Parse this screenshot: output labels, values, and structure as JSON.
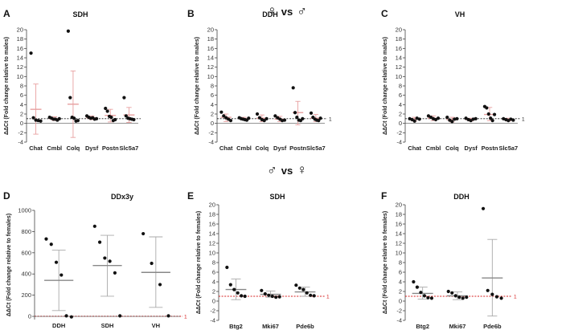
{
  "header_top": {
    "left_symbol": "♀",
    "vs": "vs",
    "right_symbol": "♂"
  },
  "header_bottom": {
    "left_symbol": "♂",
    "vs": "vs",
    "right_symbol": "♀"
  },
  "colors": {
    "point": "#111111",
    "sd_female_ref": "#e8a0a0",
    "sd_grey": "#aaaaaa",
    "reference_line": "#d62020",
    "zero_line": "#555555"
  },
  "chart_data": [
    {
      "panel": "A",
      "type": "scatter",
      "title": "SDH",
      "ylabel": "ΔΔCt (Fold change relative to males)",
      "ylim": [
        -4,
        20
      ],
      "yticks": [
        -4,
        -2,
        0,
        2,
        4,
        6,
        8,
        10,
        12,
        14,
        16,
        18,
        20
      ],
      "reference_line": 1,
      "reference_label": "",
      "reference_style": "dotted-black",
      "sd_color": "pink",
      "categories": [
        "Chat",
        "Cmbl",
        "Colq",
        "Dysf",
        "Postn",
        "Slc5a7"
      ],
      "points": [
        [
          15.0,
          1.2,
          0.7,
          0.6,
          0.5
        ],
        [
          1.3,
          1.1,
          0.9,
          0.9,
          0.7,
          1.0
        ],
        [
          19.7,
          5.5,
          1.3,
          1.1,
          0.5,
          0.6
        ],
        [
          1.6,
          1.3,
          1.1,
          1.2,
          0.9,
          1.0
        ],
        [
          3.2,
          2.6,
          1.5,
          1.3,
          0.6,
          0.8
        ],
        [
          5.5,
          1.6,
          1.1,
          1.0,
          0.9,
          0.8
        ]
      ],
      "means": [
        3.0,
        1.0,
        4.1,
        1.2,
        1.7,
        1.8
      ],
      "sd": [
        [
          -2.3,
          8.4
        ],
        [
          0.6,
          1.4
        ],
        [
          -3.0,
          11.2
        ],
        [
          0.8,
          1.6
        ],
        [
          0.3,
          3.0
        ],
        [
          0.2,
          3.4
        ]
      ]
    },
    {
      "panel": "B",
      "type": "scatter",
      "title": "DDH",
      "ylabel": "ΔΔCt (Fold change relative to males)",
      "ylim": [
        -4,
        20
      ],
      "yticks": [
        -4,
        -2,
        0,
        2,
        4,
        6,
        8,
        10,
        12,
        14,
        16,
        18,
        20
      ],
      "reference_line": 1,
      "reference_label": "1",
      "reference_style": "dotted-black",
      "sd_color": "pink",
      "categories": [
        "Chat",
        "Cmbl",
        "Colq",
        "Dysf",
        "Postn",
        "Slc5a7"
      ],
      "points": [
        [
          2.4,
          1.6,
          1.2,
          0.9,
          0.6
        ],
        [
          1.2,
          1.0,
          0.9,
          0.8,
          0.7,
          1.1
        ],
        [
          2.0,
          1.2,
          0.8,
          0.6,
          1.0
        ],
        [
          1.6,
          1.2,
          0.9,
          0.6,
          0.7
        ],
        [
          7.6,
          2.3,
          1.3,
          0.7,
          0.6,
          1.0
        ],
        [
          2.2,
          1.3,
          0.9,
          0.7,
          0.6,
          1.1
        ]
      ],
      "means": [
        1.3,
        1.0,
        1.1,
        0.9,
        2.3,
        1.1
      ],
      "sd": [
        [
          0.4,
          2.0
        ],
        [
          0.7,
          1.3
        ],
        [
          0.4,
          1.8
        ],
        [
          0.4,
          1.5
        ],
        [
          -0.3,
          4.7
        ],
        [
          0.4,
          1.9
        ]
      ]
    },
    {
      "panel": "C",
      "type": "scatter",
      "title": "VH",
      "ylabel": "ΔΔCt (Fold change relative to males)",
      "ylim": [
        -4,
        20
      ],
      "yticks": [
        -4,
        -2,
        0,
        2,
        4,
        6,
        8,
        10,
        12,
        14,
        16,
        18,
        20
      ],
      "reference_line": 1,
      "reference_label": "1",
      "reference_style": "dotted-black",
      "sd_color": "pink",
      "categories": [
        "Chat",
        "Cmbl",
        "Colq",
        "Dysf",
        "Postn",
        "Slc5a7"
      ],
      "points": [
        [
          1.0,
          0.8,
          0.5,
          1.1,
          0.9
        ],
        [
          1.6,
          1.3,
          1.0,
          0.8,
          1.1
        ],
        [
          1.3,
          0.7,
          0.4,
          0.9,
          1.0
        ],
        [
          1.1,
          0.8,
          0.6,
          0.9,
          1.0
        ],
        [
          3.6,
          3.3,
          2.0,
          1.1,
          0.6,
          1.9
        ],
        [
          1.0,
          0.8,
          0.6,
          0.9,
          0.7
        ]
      ],
      "means": [
        0.9,
        1.1,
        0.8,
        0.8,
        1.9,
        0.8
      ],
      "sd": [
        [
          0.5,
          1.3
        ],
        [
          0.6,
          1.6
        ],
        [
          0.3,
          1.3
        ],
        [
          0.5,
          1.1
        ],
        [
          0.6,
          3.4
        ],
        [
          0.5,
          1.1
        ]
      ]
    },
    {
      "panel": "D",
      "type": "scatter",
      "title": "DDx3y",
      "ylabel": "ΔΔCt (Fold change relative to females)",
      "ylim": [
        -30,
        1000
      ],
      "yticks": [
        0,
        200,
        400,
        600,
        800,
        1000
      ],
      "reference_line": 1,
      "reference_label": "1",
      "reference_style": "dotted-red",
      "sd_color": "grey",
      "categories": [
        "DDH",
        "SDH",
        "VH"
      ],
      "points": [
        [
          730,
          680,
          510,
          390,
          5,
          -5
        ],
        [
          850,
          700,
          550,
          520,
          410,
          5
        ],
        [
          780,
          500,
          300,
          5
        ]
      ],
      "means": [
        340,
        480,
        415
      ],
      "sd": [
        [
          55,
          625
        ],
        [
          190,
          765
        ],
        [
          85,
          750
        ]
      ]
    },
    {
      "panel": "E",
      "type": "scatter",
      "title": "SDH",
      "ylabel": "ΔΔCt (Fold change relative to females)",
      "ylim": [
        -4,
        20
      ],
      "yticks": [
        -4,
        -2,
        0,
        2,
        4,
        6,
        8,
        10,
        12,
        14,
        16,
        18,
        20
      ],
      "reference_line": 1,
      "reference_label": "1",
      "reference_style": "dotted-red",
      "sd_color": "grey",
      "categories": [
        "Btg2",
        "Mki67",
        "Pde6b"
      ],
      "points": [
        [
          7.0,
          3.4,
          2.4,
          1.7,
          1.1,
          1.0
        ],
        [
          2.2,
          1.5,
          1.2,
          1.0,
          0.8,
          0.9
        ],
        [
          3.3,
          2.7,
          2.4,
          1.7,
          1.2,
          1.1
        ]
      ],
      "means": [
        2.4,
        1.4,
        1.9
      ],
      "sd": [
        [
          0.3,
          4.6
        ],
        [
          0.8,
          2.1
        ],
        [
          1.0,
          2.9
        ]
      ]
    },
    {
      "panel": "F",
      "type": "scatter",
      "title": "DDH",
      "ylabel": "ΔΔCt (Fold change relative to females)",
      "ylim": [
        -4,
        20
      ],
      "yticks": [
        -4,
        -2,
        0,
        2,
        4,
        6,
        8,
        10,
        12,
        14,
        16,
        18,
        20
      ],
      "reference_line": 1,
      "reference_label": "1",
      "reference_style": "dotted-red",
      "sd_color": "grey",
      "categories": [
        "Btg2",
        "Mki67",
        "Pde6b"
      ],
      "points": [
        [
          4.0,
          2.9,
          1.8,
          1.1,
          0.7,
          0.6
        ],
        [
          2.0,
          1.7,
          1.1,
          0.8,
          0.6,
          0.8
        ],
        [
          19.2,
          2.2,
          1.4,
          0.9,
          0.6
        ]
      ],
      "means": [
        1.6,
        1.1,
        4.8
      ],
      "sd": [
        [
          0.4,
          2.9
        ],
        [
          0.3,
          1.9
        ],
        [
          -3.1,
          12.8
        ]
      ]
    }
  ]
}
